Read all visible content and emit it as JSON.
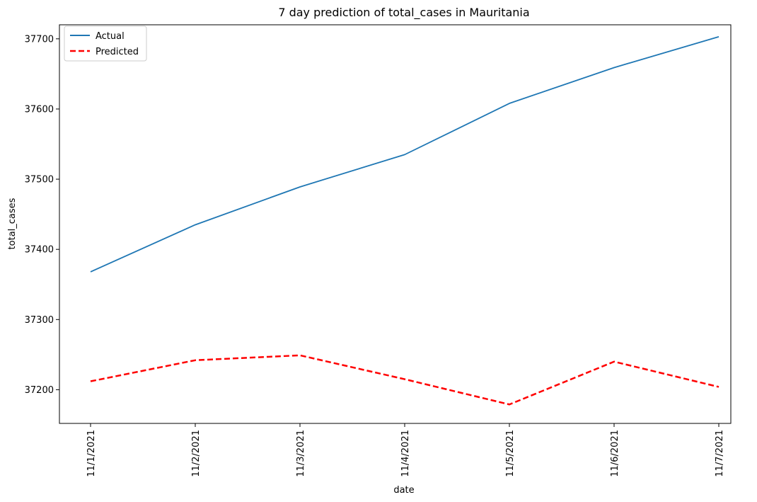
{
  "chart_data": {
    "type": "line",
    "title": "7 day prediction of total_cases in Mauritania",
    "xlabel": "date",
    "ylabel": "total_cases",
    "categories": [
      "11/1/2021",
      "11/2/2021",
      "11/3/2021",
      "11/4/2021",
      "11/5/2021",
      "11/6/2021",
      "11/7/2021"
    ],
    "series": [
      {
        "name": "Actual",
        "color": "#1f77b4",
        "style": "solid",
        "values": [
          37368,
          37435,
          37489,
          37535,
          37608,
          37659,
          37703
        ]
      },
      {
        "name": "Predicted",
        "color": "#ff0000",
        "style": "dashed",
        "values": [
          37212,
          37242,
          37249,
          37215,
          37179,
          37240,
          37204
        ]
      }
    ],
    "yticks": [
      37200,
      37300,
      37400,
      37500,
      37600,
      37700
    ],
    "ylim": [
      37152,
      37720
    ],
    "grid": false,
    "legend_position": "top-left"
  }
}
